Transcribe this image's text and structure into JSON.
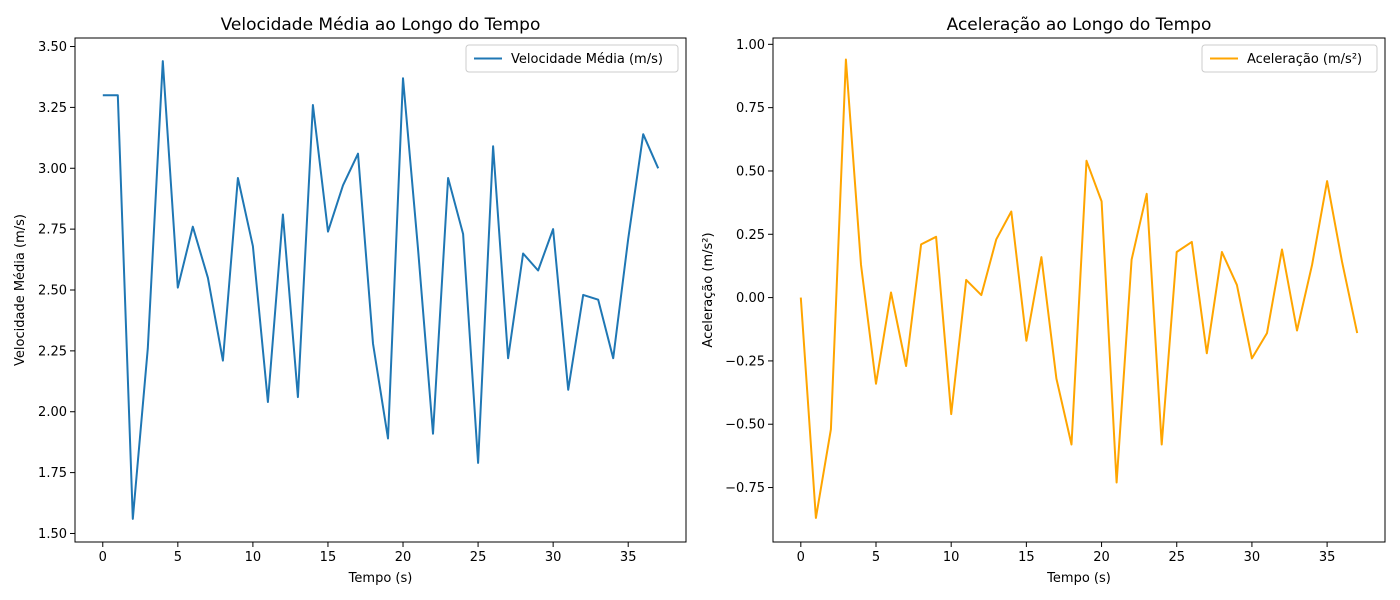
{
  "chart_data": [
    {
      "type": "line",
      "title": "Velocidade Média ao Longo do Tempo",
      "xlabel": "Tempo (s)",
      "ylabel": "Velocidade Média (m/s)",
      "xlim": [
        -1.85,
        38.85
      ],
      "ylim": [
        1.465,
        3.535
      ],
      "xticks": [
        0,
        5,
        10,
        15,
        20,
        25,
        30,
        35
      ],
      "xtick_labels": [
        "0",
        "5",
        "10",
        "15",
        "20",
        "25",
        "30",
        "35"
      ],
      "yticks": [
        1.5,
        1.75,
        2.0,
        2.25,
        2.5,
        2.75,
        3.0,
        3.25,
        3.5
      ],
      "ytick_labels": [
        "1.50",
        "1.75",
        "2.00",
        "2.25",
        "2.50",
        "2.75",
        "3.00",
        "3.25",
        "3.50"
      ],
      "grid": false,
      "legend_position": "top-right",
      "series": [
        {
          "name": "Velocidade Média (m/s)",
          "color": "#1f77b4",
          "x": [
            0,
            1,
            2,
            3,
            4,
            5,
            6,
            7,
            8,
            9,
            10,
            11,
            12,
            13,
            14,
            15,
            16,
            17,
            18,
            19,
            20,
            21,
            22,
            23,
            24,
            25,
            26,
            27,
            28,
            29,
            30,
            31,
            32,
            33,
            34,
            35,
            36,
            37
          ],
          "y": [
            3.3,
            3.3,
            1.56,
            2.26,
            3.44,
            2.51,
            2.76,
            2.55,
            2.21,
            2.96,
            2.68,
            2.04,
            2.81,
            2.06,
            3.26,
            2.74,
            2.93,
            3.06,
            2.28,
            1.89,
            3.37,
            2.67,
            1.91,
            2.96,
            2.73,
            1.79,
            3.09,
            2.22,
            2.65,
            2.58,
            2.75,
            2.09,
            2.48,
            2.46,
            2.22,
            2.71,
            3.14,
            3.0
          ]
        }
      ]
    },
    {
      "type": "line",
      "title": "Aceleração ao Longo do Tempo",
      "xlabel": "Tempo (s)",
      "ylabel": "Aceleração (m/s²)",
      "xlim": [
        -1.85,
        38.85
      ],
      "ylim": [
        -0.965,
        1.025
      ],
      "xticks": [
        0,
        5,
        10,
        15,
        20,
        25,
        30,
        35
      ],
      "xtick_labels": [
        "0",
        "5",
        "10",
        "15",
        "20",
        "25",
        "30",
        "35"
      ],
      "yticks": [
        -0.75,
        -0.5,
        -0.25,
        0.0,
        0.25,
        0.5,
        0.75,
        1.0
      ],
      "ytick_labels": [
        "−0.75",
        "−0.50",
        "−0.25",
        "0.00",
        "0.25",
        "0.50",
        "0.75",
        "1.00"
      ],
      "grid": false,
      "legend_position": "top-right",
      "series": [
        {
          "name": "Aceleração (m/s²)",
          "color": "#ffa500",
          "x": [
            0,
            1,
            2,
            3,
            4,
            5,
            6,
            7,
            8,
            9,
            10,
            11,
            12,
            13,
            14,
            15,
            16,
            17,
            18,
            19,
            20,
            21,
            22,
            23,
            24,
            25,
            26,
            27,
            28,
            29,
            30,
            31,
            32,
            33,
            34,
            35,
            36,
            37
          ],
          "y": [
            0.0,
            -0.87,
            -0.52,
            0.94,
            0.13,
            -0.34,
            0.02,
            -0.27,
            0.21,
            0.24,
            -0.46,
            0.07,
            0.01,
            0.23,
            0.34,
            -0.17,
            0.16,
            -0.32,
            -0.58,
            0.54,
            0.38,
            -0.73,
            0.15,
            0.41,
            -0.58,
            0.18,
            0.22,
            -0.22,
            0.18,
            0.05,
            -0.24,
            -0.14,
            0.19,
            -0.13,
            0.13,
            0.46,
            0.14,
            -0.14
          ]
        }
      ]
    }
  ]
}
